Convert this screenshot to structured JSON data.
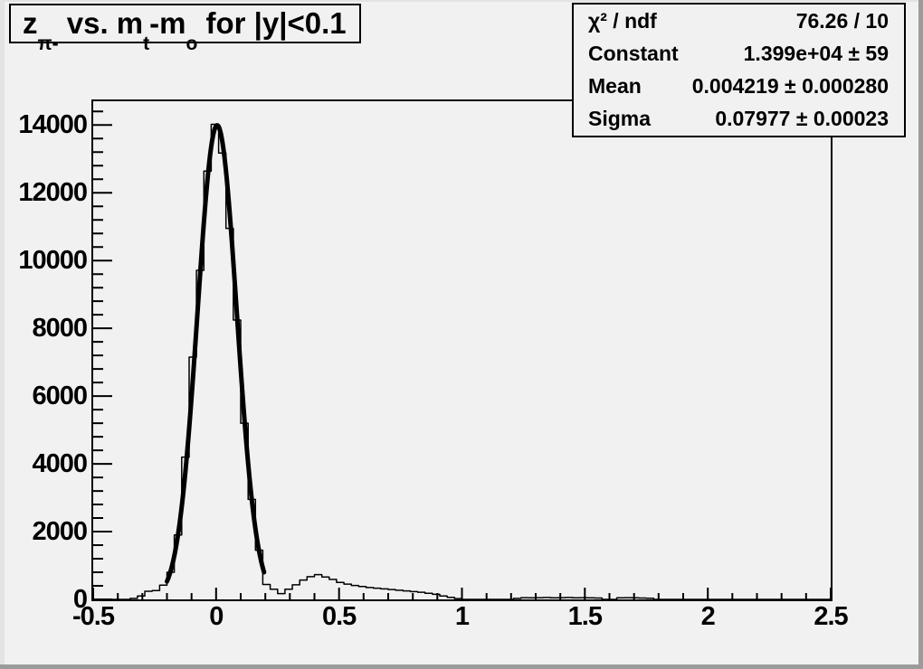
{
  "canvas": {
    "background": "#f1f1f1",
    "line_color": "#000000",
    "border_shadow": "#9b9b9b"
  },
  "title_box": {
    "segments": [
      {
        "text": "z",
        "sub": false
      },
      {
        "text": "π-",
        "sub": true
      },
      {
        "text": " vs. m",
        "sub": false
      },
      {
        "text": "t",
        "sub": true
      },
      {
        "text": "-m",
        "sub": false
      },
      {
        "text": "o",
        "sub": true
      },
      {
        "text": " for |y|<0.1",
        "sub": false
      }
    ]
  },
  "stats_box": {
    "rows": [
      {
        "label": "χ² / ndf",
        "value": "76.26 / 10"
      },
      {
        "label": "Constant",
        "value": "1.399e+04 ± 59"
      },
      {
        "label": "Mean",
        "value": "0.004219 ± 0.000280"
      },
      {
        "label": "Sigma",
        "value": "0.07977 ± 0.00023"
      }
    ]
  },
  "chart_data": {
    "type": "bar",
    "title": "z_{π-} vs. m_{t}-m_{o} for |y|<0.1",
    "xlabel": "",
    "ylabel": "",
    "xlim": [
      -0.5,
      2.5
    ],
    "ylim": [
      0,
      14700
    ],
    "grid": false,
    "legend_position": "none",
    "x_tick_values": [
      -0.5,
      0,
      0.5,
      1,
      1.5,
      2,
      2.5
    ],
    "x_tick_labels": [
      "-0.5",
      "0",
      "0.5",
      "1",
      "1.5",
      "2",
      "2.5"
    ],
    "x_minor_step": 0.1,
    "y_tick_values": [
      0,
      2000,
      4000,
      6000,
      8000,
      10000,
      12000,
      14000
    ],
    "y_tick_labels": [
      "0",
      "2000",
      "4000",
      "6000",
      "8000",
      "10000",
      "12000",
      "14000"
    ],
    "y_minor_step": 400,
    "histogram": {
      "bin_start": -0.5,
      "bin_width": 0.03,
      "counts": [
        0,
        0,
        0,
        0,
        0,
        30,
        100,
        240,
        260,
        420,
        800,
        1900,
        4200,
        7150,
        9710,
        12640,
        14020,
        13170,
        10950,
        8245,
        5200,
        2950,
        1450,
        440,
        300,
        170,
        300,
        430,
        570,
        670,
        730,
        660,
        590,
        500,
        450,
        410,
        380,
        350,
        330,
        310,
        290,
        270,
        250,
        230,
        210,
        180,
        150,
        100,
        60,
        25,
        0,
        0,
        0,
        0,
        0,
        0,
        0,
        30,
        50,
        45,
        50,
        55,
        45,
        50,
        55,
        45,
        50,
        45,
        40,
        0,
        0,
        45,
        50,
        45,
        40,
        35,
        0,
        0,
        0,
        0,
        0,
        0,
        0,
        0,
        0,
        0,
        0,
        0,
        0,
        0,
        0,
        0,
        0,
        0,
        0,
        0,
        0,
        0,
        0,
        0
      ]
    },
    "fit": {
      "model": "gaussian",
      "constant": 13990,
      "mean": 0.004219,
      "sigma": 0.07977,
      "chi2": 76.26,
      "ndf": 10,
      "range": [
        -0.2,
        0.195
      ]
    }
  }
}
